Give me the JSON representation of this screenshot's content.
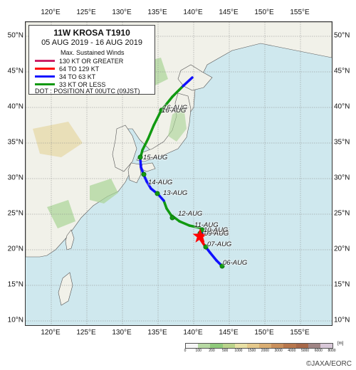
{
  "legend": {
    "title": "11W  KROSA  T1910",
    "period": "05 AUG 2019 - 16 AUG 2019",
    "subtitle": "Max. Sustained Winds",
    "items": [
      {
        "label": "130 KT OR GREATER",
        "color": "#cc2266"
      },
      {
        "label": "64 TO 129 KT",
        "color": "#ff0000"
      },
      {
        "label": "34 TO 63 KT",
        "color": "#1111ff"
      },
      {
        "label": "33 KT OR LESS",
        "color": "#119911"
      }
    ],
    "dot_note": "DOT : POSITION AT 00UTC (09JST)"
  },
  "axes": {
    "lon_labels": [
      "120°E",
      "125°E",
      "130°E",
      "135°E",
      "140°E",
      "145°E",
      "150°E",
      "155°E"
    ],
    "lon_values": [
      120,
      125,
      130,
      135,
      140,
      145,
      150,
      155
    ],
    "lat_labels": [
      "10°N",
      "15°N",
      "20°N",
      "25°N",
      "30°N",
      "35°N",
      "40°N",
      "45°N",
      "50°N"
    ],
    "lat_values": [
      10,
      15,
      20,
      25,
      30,
      35,
      40,
      45,
      50
    ]
  },
  "track": {
    "points": [
      {
        "lon": 144.0,
        "lat": 17.7,
        "cat": "green"
      },
      {
        "lon": 143.2,
        "lat": 18.5,
        "cat": "blue"
      },
      {
        "lon": 142.3,
        "lat": 19.6,
        "cat": "blue"
      },
      {
        "lon": 141.6,
        "lat": 20.5,
        "cat": "blue"
      },
      {
        "lon": 141.0,
        "lat": 21.4,
        "cat": "red"
      },
      {
        "lon": 140.9,
        "lat": 22.0,
        "cat": "red"
      },
      {
        "lon": 141.2,
        "lat": 22.3,
        "cat": "red"
      },
      {
        "lon": 140.9,
        "lat": 22.5,
        "cat": "blue"
      },
      {
        "lon": 141.3,
        "lat": 22.8,
        "cat": "blue"
      },
      {
        "lon": 140.8,
        "lat": 23.1,
        "cat": "green"
      },
      {
        "lon": 139.4,
        "lat": 23.4,
        "cat": "green"
      },
      {
        "lon": 138.0,
        "lat": 24.0,
        "cat": "green"
      },
      {
        "lon": 136.8,
        "lat": 24.9,
        "cat": "green"
      },
      {
        "lon": 136.2,
        "lat": 25.8,
        "cat": "green"
      },
      {
        "lon": 135.8,
        "lat": 26.9,
        "cat": "green"
      },
      {
        "lon": 135.0,
        "lat": 27.8,
        "cat": "blue"
      },
      {
        "lon": 134.0,
        "lat": 28.6,
        "cat": "blue"
      },
      {
        "lon": 133.4,
        "lat": 29.6,
        "cat": "blue"
      },
      {
        "lon": 133.0,
        "lat": 30.5,
        "cat": "blue"
      },
      {
        "lon": 132.6,
        "lat": 31.6,
        "cat": "blue"
      },
      {
        "lon": 132.5,
        "lat": 32.8,
        "cat": "blue"
      },
      {
        "lon": 132.8,
        "lat": 34.0,
        "cat": "green"
      },
      {
        "lon": 133.6,
        "lat": 35.6,
        "cat": "green"
      },
      {
        "lon": 134.4,
        "lat": 37.5,
        "cat": "green"
      },
      {
        "lon": 135.4,
        "lat": 39.5,
        "cat": "green"
      },
      {
        "lon": 137.0,
        "lat": 41.5,
        "cat": "green"
      },
      {
        "lon": 138.5,
        "lat": 43.0,
        "cat": "green"
      },
      {
        "lon": 139.8,
        "lat": 44.2,
        "cat": "blue"
      }
    ],
    "dots": [
      {
        "lon": 144.0,
        "lat": 17.7
      },
      {
        "lon": 141.7,
        "lat": 20.4
      },
      {
        "lon": 140.9,
        "lat": 22.3
      },
      {
        "lon": 141.2,
        "lat": 22.8
      },
      {
        "lon": 137.0,
        "lat": 24.5
      },
      {
        "lon": 134.9,
        "lat": 27.9
      },
      {
        "lon": 133.0,
        "lat": 30.6
      },
      {
        "lon": 132.5,
        "lat": 33.0
      },
      {
        "lon": 135.5,
        "lat": 39.6
      }
    ],
    "date_labels": [
      {
        "text": "06-AUG",
        "lon": 144.2,
        "lat": 18.0
      },
      {
        "text": "07-AUG",
        "lon": 142.0,
        "lat": 20.6
      },
      {
        "text": "08-AUG",
        "lon": 141.6,
        "lat": 22.3
      },
      {
        "text": "09-AUG",
        "lon": 141.6,
        "lat": 22.1
      },
      {
        "text": "10-AUG",
        "lon": 141.5,
        "lat": 22.6
      },
      {
        "text": "11-AUG",
        "lon": 140.2,
        "lat": 23.3
      },
      {
        "text": "12-AUG",
        "lon": 137.9,
        "lat": 24.9
      },
      {
        "text": "13-AUG",
        "lon": 135.8,
        "lat": 27.8
      },
      {
        "text": "14-AUG",
        "lon": 133.7,
        "lat": 29.3
      },
      {
        "text": "15-AUG",
        "lon": 133.0,
        "lat": 32.8
      },
      {
        "text": "16-AUG",
        "lon": 135.8,
        "lat": 39.8
      },
      {
        "text": "16-AUG",
        "lon": 135.6,
        "lat": 39.4
      }
    ],
    "max_intensity_star": {
      "lon": 140.9,
      "lat": 21.9
    }
  },
  "elevation_scale": {
    "ticks": [
      "0",
      "100",
      "200",
      "500",
      "1000",
      "1500",
      "2000",
      "3000",
      "4000",
      "5000",
      "6000",
      "8000"
    ],
    "unit": "[m]",
    "colors": [
      "#f6f6f6",
      "#b7d9a3",
      "#8fca7b",
      "#b9d38a",
      "#e8e0a5",
      "#e5c98c",
      "#d9ad72",
      "#c98f5b",
      "#b8774c",
      "#a76849",
      "#a08585",
      "#d8c8d8"
    ]
  },
  "colors": {
    "sea": "#cfe8ee",
    "land": "#f1f1e9",
    "lowland": "#a9d495",
    "highland": "#e2cf8f",
    "coast": "#555555",
    "grid": "#888888"
  },
  "credit": "©JAXA/EORC"
}
